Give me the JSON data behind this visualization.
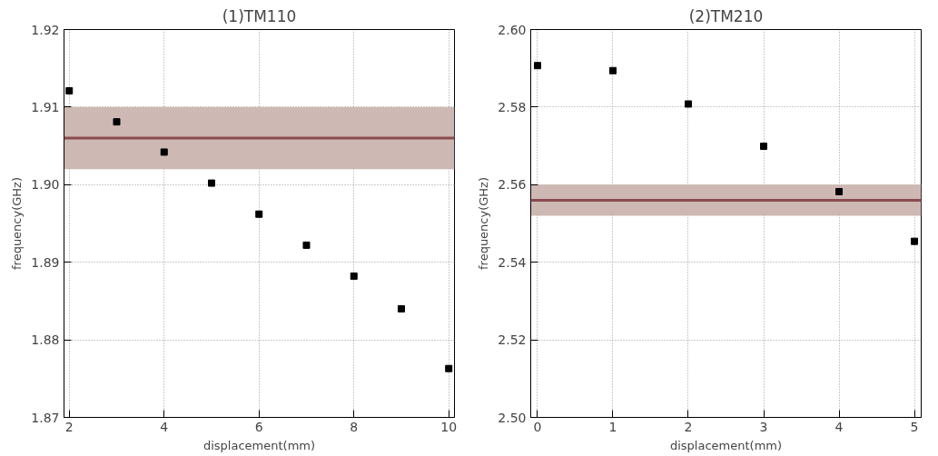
{
  "chart_data": [
    {
      "type": "scatter",
      "title": "(1)TM110",
      "xlabel": "displacement(mm)",
      "ylabel": "frequency(GHz)",
      "marker": "square",
      "grid": true,
      "x": [
        2,
        3,
        4,
        5,
        6,
        7,
        8,
        9,
        10
      ],
      "series": [
        {
          "color": "#000000",
          "values": [
            1.9121,
            1.9081,
            1.9042,
            1.9002,
            1.8962,
            1.8922,
            1.8882,
            1.884,
            1.8763
          ]
        }
      ],
      "xlim": [
        1.89,
        10.12
      ],
      "xticks": [
        2,
        4,
        6,
        8,
        10
      ],
      "ylim": [
        1.87,
        1.92
      ],
      "yticks": [
        1.87,
        1.88,
        1.89,
        {
          "value": 1.9,
          "label": "1.90"
        },
        1.91,
        1.92
      ],
      "bands": [
        {
          "axis": "y",
          "from": 1.902,
          "to": 1.91,
          "color": "#cdb8b3"
        }
      ],
      "ref_lines": [
        {
          "axis": "y",
          "value": 1.906,
          "color": "#8b4a4f",
          "line_style": "solid"
        }
      ]
    },
    {
      "type": "scatter",
      "title": "(2)TM210",
      "xlabel": "displacement(mm)",
      "ylabel": "frequency(GHz)",
      "marker": "square",
      "grid": true,
      "x": [
        0,
        1,
        2,
        3,
        4,
        5
      ],
      "series": [
        {
          "color": "#000000",
          "values": [
            2.5907,
            2.5894,
            2.5808,
            2.5699,
            2.5582,
            2.5454
          ]
        }
      ],
      "xlim": [
        -0.09,
        5.09
      ],
      "xticks": [
        0,
        1,
        2,
        3,
        4,
        5
      ],
      "ylim": [
        2.5,
        2.6
      ],
      "yticks": [
        {
          "value": 2.5,
          "label": "2.50"
        },
        2.52,
        2.54,
        2.56,
        2.58,
        {
          "value": 2.6,
          "label": "2.60"
        }
      ],
      "bands": [
        {
          "axis": "y",
          "from": 2.552,
          "to": 2.56,
          "color": "#cdb8b3"
        }
      ],
      "ref_lines": [
        {
          "axis": "y",
          "value": 2.556,
          "color": "#8b4a4f",
          "line_style": "solid"
        }
      ]
    }
  ]
}
